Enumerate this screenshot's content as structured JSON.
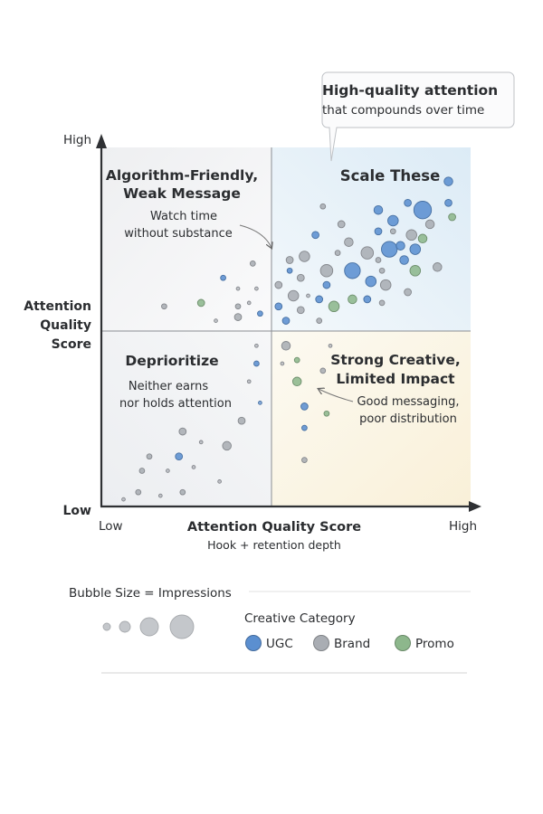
{
  "chart_data": {
    "type": "scatter",
    "subtype": "bubble-quadrant",
    "xlabel": "Attention Quality Score",
    "xsublabel": "Hook + retention depth",
    "ylabel": "Attention Quality Score",
    "x_ticks": {
      "low": "Low",
      "high": "High"
    },
    "y_ticks": {
      "low": "Low",
      "high": "High"
    },
    "xlim": [
      0,
      100
    ],
    "ylim": [
      0,
      100
    ],
    "quadrant_split": {
      "x": 46,
      "y": 49
    },
    "grid": false,
    "quadrants": [
      {
        "id": "top-left",
        "title_lines": [
          "Algorithm-Friendly,",
          "Weak Message"
        ],
        "subtitle_lines": [
          "Watch time",
          "without substance"
        ],
        "color": "#f4f5f6"
      },
      {
        "id": "top-right",
        "title_lines": [
          "Scale These"
        ],
        "subtitle_lines": [],
        "color": "#e6f1f8"
      },
      {
        "id": "bottom-left",
        "title_lines": [
          "Deprioritize"
        ],
        "subtitle_lines": [
          "Neither earns",
          "nor holds attention"
        ],
        "color": "#f2f3f5"
      },
      {
        "id": "bottom-right",
        "title_lines": [
          "Strong Creative,",
          "Limited Impact"
        ],
        "subtitle_lines": [
          "Good messaging,",
          "poor distribution"
        ],
        "color": "#fbf6e6"
      }
    ],
    "callout": {
      "title": "High-quality attention",
      "subtitle": "that compounds over time"
    },
    "categories": [
      {
        "name": "UGC",
        "color": "#5b8fd0"
      },
      {
        "name": "Brand",
        "color": "#a9adb3"
      },
      {
        "name": "Promo",
        "color": "#8db78c"
      }
    ],
    "points": [
      {
        "x": 94,
        "y": 91,
        "size": 5,
        "category": "UGC"
      },
      {
        "x": 94,
        "y": 85,
        "size": 4,
        "category": "UGC"
      },
      {
        "x": 95,
        "y": 81,
        "size": 4,
        "category": "Promo"
      },
      {
        "x": 87,
        "y": 83,
        "size": 10,
        "category": "UGC"
      },
      {
        "x": 83,
        "y": 85,
        "size": 4,
        "category": "UGC"
      },
      {
        "x": 75,
        "y": 83,
        "size": 5,
        "category": "UGC"
      },
      {
        "x": 79,
        "y": 80,
        "size": 6,
        "category": "UGC"
      },
      {
        "x": 89,
        "y": 79,
        "size": 5,
        "category": "Brand"
      },
      {
        "x": 84,
        "y": 76,
        "size": 6,
        "category": "Brand"
      },
      {
        "x": 87,
        "y": 75,
        "size": 5,
        "category": "Promo"
      },
      {
        "x": 65,
        "y": 79,
        "size": 4,
        "category": "Brand"
      },
      {
        "x": 60,
        "y": 84,
        "size": 3,
        "category": "Brand"
      },
      {
        "x": 75,
        "y": 77,
        "size": 4,
        "category": "UGC"
      },
      {
        "x": 79,
        "y": 77,
        "size": 3,
        "category": "Brand"
      },
      {
        "x": 58,
        "y": 76,
        "size": 4,
        "category": "UGC"
      },
      {
        "x": 78,
        "y": 72,
        "size": 9,
        "category": "UGC"
      },
      {
        "x": 81,
        "y": 73,
        "size": 5,
        "category": "UGC"
      },
      {
        "x": 85,
        "y": 72,
        "size": 6,
        "category": "UGC"
      },
      {
        "x": 82,
        "y": 69,
        "size": 5,
        "category": "UGC"
      },
      {
        "x": 67,
        "y": 74,
        "size": 5,
        "category": "Brand"
      },
      {
        "x": 72,
        "y": 71,
        "size": 7,
        "category": "Brand"
      },
      {
        "x": 55,
        "y": 70,
        "size": 6,
        "category": "Brand"
      },
      {
        "x": 51,
        "y": 69,
        "size": 4,
        "category": "Brand"
      },
      {
        "x": 64,
        "y": 71,
        "size": 3,
        "category": "Brand"
      },
      {
        "x": 68,
        "y": 66,
        "size": 9,
        "category": "UGC"
      },
      {
        "x": 61,
        "y": 66,
        "size": 7,
        "category": "Brand"
      },
      {
        "x": 75,
        "y": 69,
        "size": 3,
        "category": "Brand"
      },
      {
        "x": 85,
        "y": 66,
        "size": 6,
        "category": "Promo"
      },
      {
        "x": 91,
        "y": 67,
        "size": 5,
        "category": "Brand"
      },
      {
        "x": 73,
        "y": 63,
        "size": 6,
        "category": "UGC"
      },
      {
        "x": 76,
        "y": 66,
        "size": 3,
        "category": "Brand"
      },
      {
        "x": 77,
        "y": 62,
        "size": 6,
        "category": "Brand"
      },
      {
        "x": 51,
        "y": 66,
        "size": 3,
        "category": "UGC"
      },
      {
        "x": 54,
        "y": 64,
        "size": 4,
        "category": "Brand"
      },
      {
        "x": 48,
        "y": 62,
        "size": 4,
        "category": "Brand"
      },
      {
        "x": 61,
        "y": 62,
        "size": 4,
        "category": "UGC"
      },
      {
        "x": 52,
        "y": 59,
        "size": 6,
        "category": "Brand"
      },
      {
        "x": 56,
        "y": 59,
        "size": 2,
        "category": "Brand"
      },
      {
        "x": 59,
        "y": 58,
        "size": 4,
        "category": "UGC"
      },
      {
        "x": 68,
        "y": 58,
        "size": 5,
        "category": "Promo"
      },
      {
        "x": 63,
        "y": 56,
        "size": 6,
        "category": "Promo"
      },
      {
        "x": 72,
        "y": 58,
        "size": 4,
        "category": "UGC"
      },
      {
        "x": 83,
        "y": 60,
        "size": 4,
        "category": "Brand"
      },
      {
        "x": 48,
        "y": 56,
        "size": 4,
        "category": "UGC"
      },
      {
        "x": 54,
        "y": 55,
        "size": 4,
        "category": "Brand"
      },
      {
        "x": 50,
        "y": 52,
        "size": 4,
        "category": "UGC"
      },
      {
        "x": 59,
        "y": 52,
        "size": 3,
        "category": "Brand"
      },
      {
        "x": 76,
        "y": 57,
        "size": 3,
        "category": "Brand"
      },
      {
        "x": 41,
        "y": 68,
        "size": 3,
        "category": "Brand"
      },
      {
        "x": 33,
        "y": 64,
        "size": 3,
        "category": "UGC"
      },
      {
        "x": 27,
        "y": 57,
        "size": 4,
        "category": "Promo"
      },
      {
        "x": 37,
        "y": 56,
        "size": 3,
        "category": "Brand"
      },
      {
        "x": 42,
        "y": 61,
        "size": 2,
        "category": "Brand"
      },
      {
        "x": 37,
        "y": 61,
        "size": 2,
        "category": "Brand"
      },
      {
        "x": 43,
        "y": 54,
        "size": 3,
        "category": "UGC"
      },
      {
        "x": 37,
        "y": 53,
        "size": 4,
        "category": "Brand"
      },
      {
        "x": 40,
        "y": 57,
        "size": 2,
        "category": "Brand"
      },
      {
        "x": 31,
        "y": 52,
        "size": 2,
        "category": "Brand"
      },
      {
        "x": 17,
        "y": 56,
        "size": 3,
        "category": "Brand"
      },
      {
        "x": 50,
        "y": 45,
        "size": 5,
        "category": "Brand"
      },
      {
        "x": 62,
        "y": 45,
        "size": 2,
        "category": "Brand"
      },
      {
        "x": 42,
        "y": 45,
        "size": 2,
        "category": "Brand"
      },
      {
        "x": 42,
        "y": 40,
        "size": 3,
        "category": "UGC"
      },
      {
        "x": 49,
        "y": 40,
        "size": 2,
        "category": "Brand"
      },
      {
        "x": 53,
        "y": 41,
        "size": 3,
        "category": "Promo"
      },
      {
        "x": 60,
        "y": 38,
        "size": 3,
        "category": "Brand"
      },
      {
        "x": 53,
        "y": 35,
        "size": 5,
        "category": "Promo"
      },
      {
        "x": 40,
        "y": 35,
        "size": 2,
        "category": "Brand"
      },
      {
        "x": 43,
        "y": 29,
        "size": 2,
        "category": "UGC"
      },
      {
        "x": 55,
        "y": 28,
        "size": 4,
        "category": "UGC"
      },
      {
        "x": 61,
        "y": 26,
        "size": 3,
        "category": "Promo"
      },
      {
        "x": 55,
        "y": 22,
        "size": 3,
        "category": "UGC"
      },
      {
        "x": 55,
        "y": 13,
        "size": 3,
        "category": "Brand"
      },
      {
        "x": 38,
        "y": 24,
        "size": 4,
        "category": "Brand"
      },
      {
        "x": 22,
        "y": 21,
        "size": 4,
        "category": "Brand"
      },
      {
        "x": 34,
        "y": 17,
        "size": 5,
        "category": "Brand"
      },
      {
        "x": 21,
        "y": 14,
        "size": 4,
        "category": "UGC"
      },
      {
        "x": 27,
        "y": 18,
        "size": 2,
        "category": "Brand"
      },
      {
        "x": 13,
        "y": 14,
        "size": 3,
        "category": "Brand"
      },
      {
        "x": 11,
        "y": 10,
        "size": 3,
        "category": "Brand"
      },
      {
        "x": 18,
        "y": 10,
        "size": 2,
        "category": "Brand"
      },
      {
        "x": 25,
        "y": 11,
        "size": 2,
        "category": "Brand"
      },
      {
        "x": 32,
        "y": 7,
        "size": 2,
        "category": "Brand"
      },
      {
        "x": 10,
        "y": 4,
        "size": 3,
        "category": "Brand"
      },
      {
        "x": 16,
        "y": 3,
        "size": 2,
        "category": "Brand"
      },
      {
        "x": 22,
        "y": 4,
        "size": 3,
        "category": "Brand"
      },
      {
        "x": 6,
        "y": 2,
        "size": 2,
        "category": "Brand"
      }
    ],
    "legend": {
      "size_title": "Bubble Size = Impressions",
      "size_examples": [
        1,
        2,
        3,
        4
      ],
      "category_title": "Creative Category",
      "placement": "bottom"
    }
  }
}
